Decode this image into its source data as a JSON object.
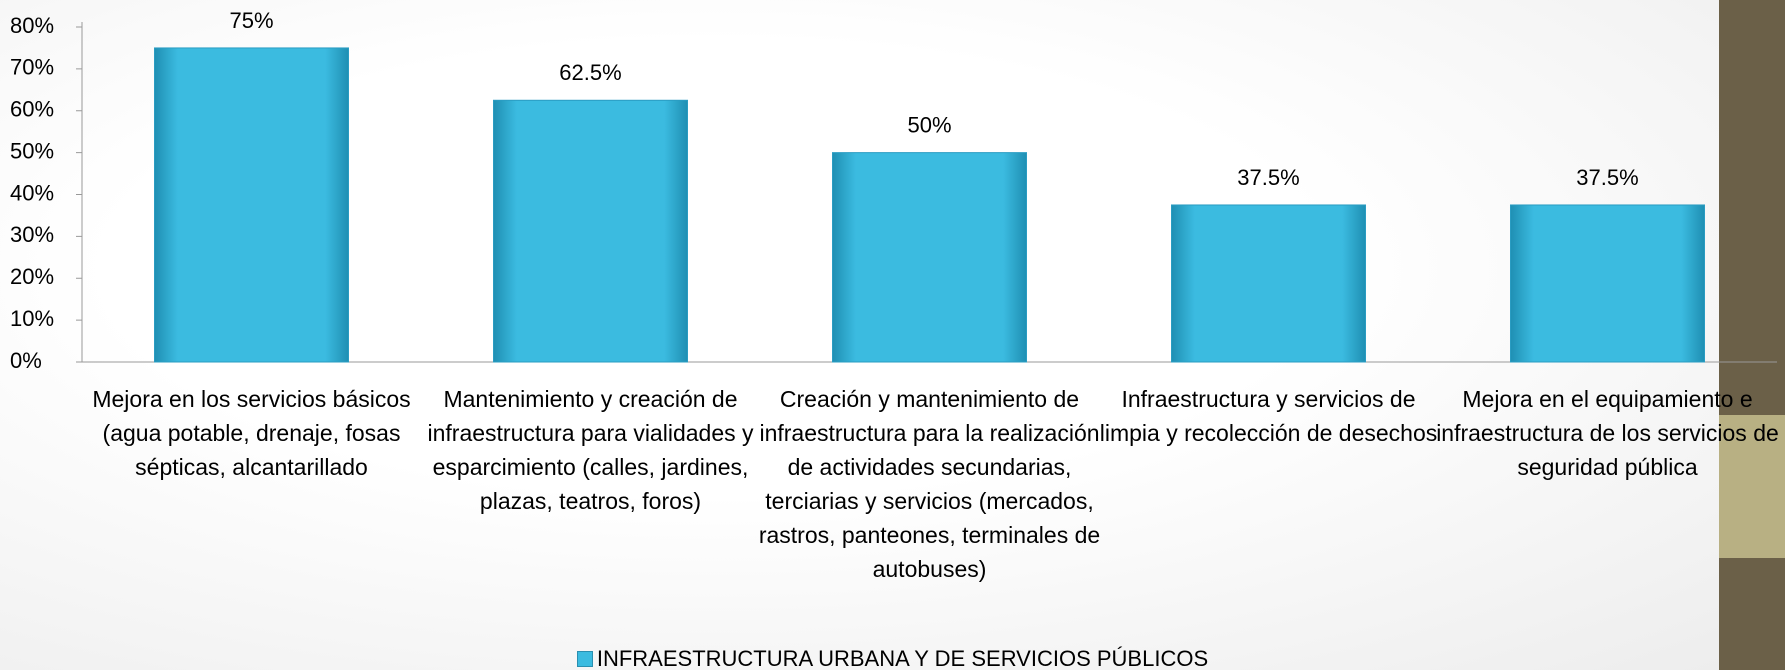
{
  "chart_data": {
    "type": "bar",
    "categories": [
      "Mejora en los servicios básicos (agua potable, drenaje, fosas sépticas, alcantarillado",
      "Mantenimiento y creación de infraestructura para vialidades y esparcimiento (calles, jardines, plazas, teatros, foros)",
      "Creación y mantenimiento de infraestructura para la realización de actividades secundarias, terciarias y servicios (mercados, rastros, panteones, terminales de autobuses)",
      "Infraestructura y servicios de limpia y recolección de desechos",
      "Mejora en el equipamiento e infraestructura de los servicios de seguridad pública"
    ],
    "series": [
      {
        "name": "INFRAESTRUCTURA URBANA Y DE SERVICIOS PÚBLICOS",
        "color": "#3bbbe0",
        "values": [
          75,
          62.5,
          50,
          37.5,
          37.5
        ],
        "value_labels": [
          "75%",
          "62.5%",
          "50%",
          "37.5%",
          "37.5%"
        ]
      }
    ],
    "ylim": [
      0,
      80
    ],
    "yticks": [
      {
        "value": 0,
        "label": "0%"
      },
      {
        "value": 10,
        "label": "10%"
      },
      {
        "value": 20,
        "label": "20%"
      },
      {
        "value": 30,
        "label": "30%"
      },
      {
        "value": 40,
        "label": "40%"
      },
      {
        "value": 50,
        "label": "50%"
      },
      {
        "value": 60,
        "label": "60%"
      },
      {
        "value": 70,
        "label": "70%"
      },
      {
        "value": 80,
        "label": "80%"
      }
    ],
    "legend": "bottom"
  }
}
